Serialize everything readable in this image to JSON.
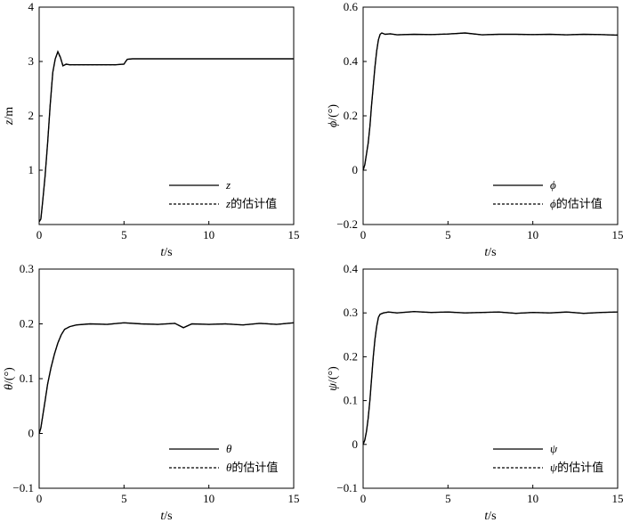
{
  "chart_data": [
    {
      "type": "line",
      "xlabel": {
        "var": "t",
        "unit": "/s"
      },
      "ylabel": {
        "var": "z",
        "unit": "/m"
      },
      "xlim": [
        0,
        15
      ],
      "ylim": [
        0,
        4
      ],
      "xticks": [
        "0",
        "5",
        "10",
        "15"
      ],
      "yticks": [
        "1",
        "2",
        "3",
        "4"
      ],
      "legend_position": "bottom-right",
      "series": [
        {
          "name": "z",
          "style": "solid",
          "x": [
            0,
            0.1,
            0.2,
            0.35,
            0.5,
            0.65,
            0.8,
            0.95,
            1.1,
            1.25,
            1.4,
            1.6,
            1.8,
            2.5,
            3.5,
            4.5,
            5.0,
            5.1,
            5.2,
            5.5,
            7,
            9,
            11,
            13,
            15
          ],
          "y": [
            0.05,
            0.1,
            0.4,
            0.9,
            1.5,
            2.2,
            2.8,
            3.05,
            3.18,
            3.08,
            2.92,
            2.95,
            2.94,
            2.94,
            2.94,
            2.94,
            2.95,
            3.0,
            3.04,
            3.05,
            3.05,
            3.05,
            3.05,
            3.05,
            3.05
          ]
        },
        {
          "name": "z的估计值",
          "style": "dashed",
          "x": [
            0,
            0.1,
            0.2,
            0.35,
            0.5,
            0.65,
            0.8,
            0.95,
            1.1,
            1.25,
            1.4,
            1.6,
            1.8,
            2.5,
            3.5,
            4.5,
            5.0,
            5.1,
            5.2,
            5.5,
            7,
            9,
            11,
            13,
            15
          ],
          "y": [
            0.05,
            0.1,
            0.4,
            0.9,
            1.5,
            2.2,
            2.8,
            3.05,
            3.17,
            3.07,
            2.93,
            2.95,
            2.94,
            2.94,
            2.94,
            2.94,
            2.95,
            3.0,
            3.04,
            3.05,
            3.05,
            3.05,
            3.05,
            3.05,
            3.05
          ]
        }
      ],
      "legend": [
        {
          "name": "z",
          "var": "z",
          "suffix": "",
          "style": "solid"
        },
        {
          "name": "z的估计值",
          "var": "z",
          "suffix": "的估计值",
          "style": "dashed"
        }
      ]
    },
    {
      "type": "line",
      "xlabel": {
        "var": "t",
        "unit": "/s"
      },
      "ylabel": {
        "var": "ϕ",
        "unit": "/(°)"
      },
      "xlim": [
        0,
        15
      ],
      "ylim": [
        -0.2,
        0.6
      ],
      "xticks": [
        "0",
        "5",
        "10",
        "15"
      ],
      "yticks": [
        "−0.2",
        "0",
        "0.2",
        "0.4",
        "0.6"
      ],
      "legend_position": "bottom-right",
      "series": [
        {
          "name": "ϕ",
          "style": "solid",
          "x": [
            0,
            0.1,
            0.2,
            0.3,
            0.4,
            0.5,
            0.6,
            0.7,
            0.8,
            0.9,
            1.0,
            1.1,
            1.3,
            1.6,
            2,
            3,
            4,
            5,
            6,
            7,
            8,
            9,
            10,
            11,
            12,
            13,
            14,
            15
          ],
          "y": [
            0.0,
            0.02,
            0.06,
            0.1,
            0.16,
            0.24,
            0.31,
            0.38,
            0.44,
            0.48,
            0.5,
            0.505,
            0.5,
            0.502,
            0.498,
            0.5,
            0.499,
            0.501,
            0.505,
            0.498,
            0.5,
            0.5,
            0.499,
            0.5,
            0.498,
            0.5,
            0.499,
            0.497
          ]
        },
        {
          "name": "ϕ的估计值",
          "style": "dashed",
          "x": [
            0,
            0.1,
            0.2,
            0.3,
            0.4,
            0.5,
            0.6,
            0.7,
            0.8,
            0.9,
            1.0,
            1.1,
            1.3,
            1.6,
            2,
            3,
            4,
            5,
            6,
            7,
            8,
            9,
            10,
            11,
            12,
            13,
            14,
            15
          ],
          "y": [
            0.0,
            0.02,
            0.06,
            0.1,
            0.16,
            0.24,
            0.31,
            0.38,
            0.44,
            0.48,
            0.5,
            0.505,
            0.5,
            0.502,
            0.498,
            0.5,
            0.499,
            0.501,
            0.505,
            0.498,
            0.5,
            0.5,
            0.499,
            0.5,
            0.498,
            0.5,
            0.499,
            0.497
          ]
        }
      ],
      "legend": [
        {
          "name": "ϕ",
          "var": "ϕ",
          "suffix": "",
          "style": "solid"
        },
        {
          "name": "ϕ的估计值",
          "var": "ϕ",
          "suffix": "的估计值",
          "style": "dashed"
        }
      ]
    },
    {
      "type": "line",
      "xlabel": {
        "var": "t",
        "unit": "/s"
      },
      "ylabel": {
        "var": "θ",
        "unit": "/(°)"
      },
      "xlim": [
        0,
        15
      ],
      "ylim": [
        -0.1,
        0.3
      ],
      "xticks": [
        "0",
        "5",
        "10",
        "15"
      ],
      "yticks": [
        "−0.1",
        "0",
        "0.1",
        "0.2",
        "0.3"
      ],
      "legend_position": "bottom-right",
      "series": [
        {
          "name": "θ",
          "style": "solid",
          "x": [
            0,
            0.1,
            0.2,
            0.35,
            0.5,
            0.7,
            0.9,
            1.1,
            1.3,
            1.5,
            1.8,
            2.2,
            3,
            4,
            5,
            6,
            7,
            8,
            8.5,
            9,
            10,
            11,
            12,
            13,
            14,
            15
          ],
          "y": [
            0.0,
            0.01,
            0.03,
            0.06,
            0.09,
            0.12,
            0.145,
            0.165,
            0.18,
            0.19,
            0.195,
            0.198,
            0.2,
            0.199,
            0.202,
            0.2,
            0.199,
            0.201,
            0.193,
            0.2,
            0.199,
            0.2,
            0.198,
            0.201,
            0.199,
            0.202
          ]
        },
        {
          "name": "θ的估计值",
          "style": "dashed",
          "x": [
            0,
            0.1,
            0.2,
            0.35,
            0.5,
            0.7,
            0.9,
            1.1,
            1.3,
            1.5,
            1.8,
            2.2,
            3,
            4,
            5,
            6,
            7,
            8,
            8.5,
            9,
            10,
            11,
            12,
            13,
            14,
            15
          ],
          "y": [
            0.0,
            0.01,
            0.03,
            0.06,
            0.09,
            0.12,
            0.145,
            0.165,
            0.18,
            0.19,
            0.195,
            0.198,
            0.2,
            0.199,
            0.202,
            0.2,
            0.199,
            0.201,
            0.193,
            0.2,
            0.199,
            0.2,
            0.198,
            0.201,
            0.199,
            0.202
          ]
        }
      ],
      "legend": [
        {
          "name": "θ",
          "var": "θ",
          "suffix": "",
          "style": "solid"
        },
        {
          "name": "θ的估计值",
          "var": "θ",
          "suffix": "的估计值",
          "style": "dashed"
        }
      ]
    },
    {
      "type": "line",
      "xlabel": {
        "var": "t",
        "unit": "/s"
      },
      "ylabel": {
        "var": "ψ",
        "unit": "/(°)"
      },
      "xlim": [
        0,
        15
      ],
      "ylim": [
        -0.1,
        0.4
      ],
      "xticks": [
        "0",
        "5",
        "10",
        "15"
      ],
      "yticks": [
        "−0.1",
        "0",
        "0.1",
        "0.2",
        "0.3",
        "0.4"
      ],
      "legend_position": "bottom-right",
      "series": [
        {
          "name": "ψ",
          "style": "solid",
          "x": [
            0,
            0.1,
            0.2,
            0.3,
            0.4,
            0.5,
            0.6,
            0.7,
            0.8,
            0.9,
            1.0,
            1.2,
            1.5,
            2,
            3,
            4,
            5,
            6,
            7,
            8,
            9,
            10,
            11,
            12,
            13,
            14,
            15
          ],
          "y": [
            0.0,
            0.01,
            0.03,
            0.06,
            0.1,
            0.15,
            0.2,
            0.24,
            0.27,
            0.29,
            0.297,
            0.3,
            0.302,
            0.3,
            0.303,
            0.301,
            0.302,
            0.3,
            0.301,
            0.302,
            0.299,
            0.301,
            0.3,
            0.302,
            0.299,
            0.301,
            0.302
          ]
        },
        {
          "name": "ψ的估计值",
          "style": "dashed",
          "x": [
            0,
            0.1,
            0.2,
            0.3,
            0.4,
            0.5,
            0.6,
            0.7,
            0.8,
            0.9,
            1.0,
            1.2,
            1.5,
            2,
            3,
            4,
            5,
            6,
            7,
            8,
            9,
            10,
            11,
            12,
            13,
            14,
            15
          ],
          "y": [
            0.0,
            0.01,
            0.03,
            0.06,
            0.1,
            0.15,
            0.2,
            0.24,
            0.27,
            0.29,
            0.297,
            0.3,
            0.302,
            0.3,
            0.303,
            0.301,
            0.302,
            0.3,
            0.301,
            0.302,
            0.299,
            0.301,
            0.3,
            0.302,
            0.299,
            0.301,
            0.302
          ]
        }
      ],
      "legend": [
        {
          "name": "ψ",
          "var": "ψ",
          "suffix": "",
          "style": "solid"
        },
        {
          "name": "ψ的估计值",
          "var": "ψ",
          "suffix": "的估计值",
          "style": "dashed"
        }
      ]
    }
  ]
}
